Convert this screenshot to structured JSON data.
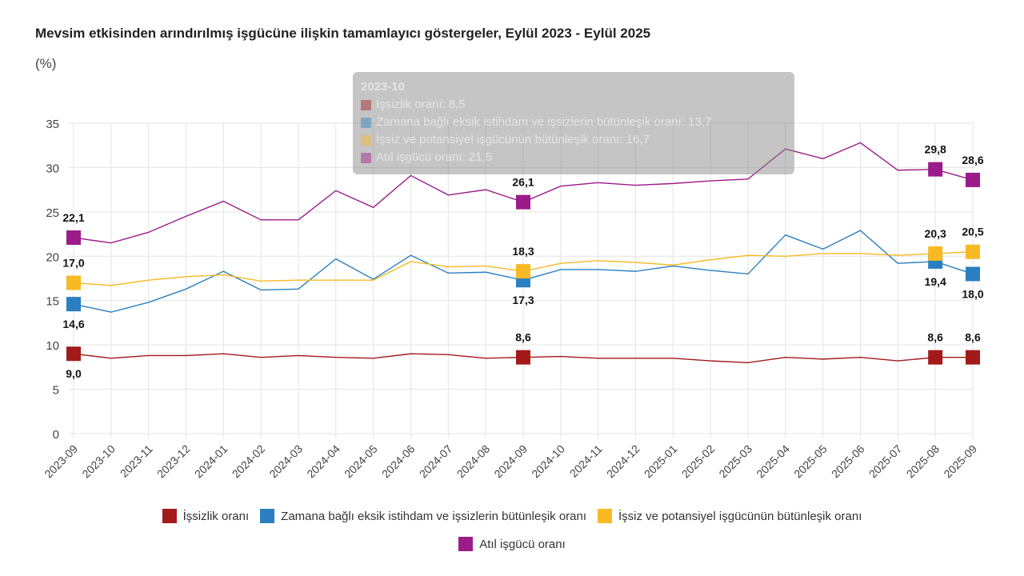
{
  "title": "Mevsim etkisinden arındırılmış işgücüne ilişkin tamamlayıcı göstergeler, Eylül 2023 - Eylül 2025",
  "unit": "(%)",
  "chart_data": {
    "type": "line",
    "x": [
      "2023-09",
      "2023-10",
      "2023-11",
      "2023-12",
      "2024-01",
      "2024-02",
      "2024-03",
      "2024-04",
      "2024-05",
      "2024-06",
      "2024-07",
      "2024-08",
      "2024-09",
      "2024-10",
      "2024-11",
      "2024-12",
      "2025-01",
      "2025-02",
      "2025-03",
      "2025-04",
      "2025-05",
      "2025-06",
      "2025-07",
      "2025-08",
      "2025-09"
    ],
    "ylim": [
      0,
      35
    ],
    "yticks": [
      0,
      5,
      10,
      15,
      20,
      25,
      30,
      35
    ],
    "grid": true,
    "legend": "bottom",
    "labeled_points": [
      0,
      12,
      23,
      24
    ],
    "series": [
      {
        "name": "İşsizlik oranı",
        "color": "#a31a1a",
        "values": [
          9.0,
          8.5,
          8.8,
          8.8,
          9.0,
          8.6,
          8.8,
          8.6,
          8.5,
          9.0,
          8.9,
          8.5,
          8.6,
          8.7,
          8.5,
          8.5,
          8.5,
          8.2,
          8.0,
          8.6,
          8.4,
          8.6,
          8.2,
          8.6,
          8.6
        ]
      },
      {
        "name": "Zamana bağlı eksik istihdam ve işsizlerin bütünleşik oranı",
        "color": "#2a7fc1",
        "values": [
          14.6,
          13.7,
          14.8,
          16.3,
          18.3,
          16.2,
          16.3,
          19.7,
          17.4,
          20.1,
          18.1,
          18.2,
          17.3,
          18.5,
          18.5,
          18.3,
          18.9,
          18.4,
          18.0,
          22.4,
          20.8,
          22.9,
          19.2,
          19.4,
          18.0
        ]
      },
      {
        "name": "İşsiz ve potansiyel işgücünün bütünleşik oranı",
        "color": "#f7b924",
        "values": [
          17.0,
          16.7,
          17.3,
          17.7,
          17.9,
          17.2,
          17.3,
          17.3,
          17.3,
          19.4,
          18.8,
          18.9,
          18.3,
          19.2,
          19.5,
          19.3,
          19.0,
          19.6,
          20.1,
          20.0,
          20.3,
          20.3,
          20.1,
          20.3,
          20.5
        ]
      },
      {
        "name": "Atıl işgücü oranı",
        "color": "#9b1b8a",
        "values": [
          22.1,
          21.5,
          22.7,
          24.5,
          26.2,
          24.1,
          24.1,
          27.4,
          25.5,
          29.1,
          26.9,
          27.5,
          26.1,
          27.9,
          28.3,
          28.0,
          28.2,
          28.5,
          28.7,
          32.1,
          31.0,
          32.8,
          29.7,
          29.8,
          28.6
        ]
      }
    ]
  },
  "tooltip": {
    "title": "2023-10",
    "rows": [
      "İşsizlik oranı: 8,5",
      "Zamana bağlı eksik istihdam ve işsizlerin bütünleşik oranı: 13,7",
      "İşsiz ve potansiyel işgücünün bütünleşik oranı: 16,7",
      "Atıl işgücü oranı: 21,5"
    ]
  }
}
